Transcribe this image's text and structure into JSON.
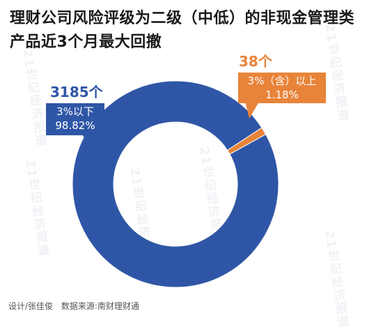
{
  "title": {
    "line1": "理财公司风险评级为二级（中低）的非现金管理类",
    "line2": "产品近3个月最大回撤"
  },
  "watermark_text": "21世纪经济报道",
  "footer": {
    "design": "设计/张佳俊",
    "source": "数据来源:南财理财通"
  },
  "colors": {
    "blue": "#2f56a6",
    "orange": "#e8843a"
  },
  "chart_data": {
    "type": "pie",
    "donut": true,
    "segments": [
      {
        "count_label": "3185个",
        "category": "3%以下",
        "percent_label": "98.82%",
        "value": 98.82,
        "color": "#2f56a6"
      },
      {
        "count_label": "38个",
        "category": "3%（含）以上",
        "percent_label": "1.18%",
        "value": 1.18,
        "color": "#e8843a"
      }
    ]
  }
}
